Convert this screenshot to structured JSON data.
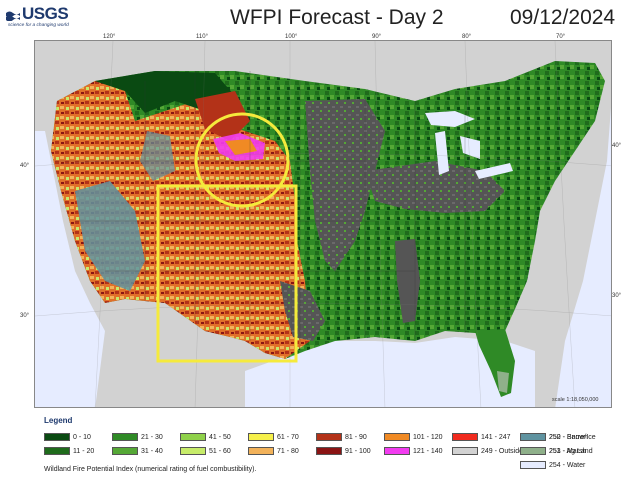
{
  "header": {
    "logo_text": "USGS",
    "logo_tagline": "science for a changing world",
    "title": "WFPI Forecast - Day 2",
    "date": "09/12/2024"
  },
  "map": {
    "longitude_labels": [
      "120°",
      "110°",
      "100°",
      "90°",
      "80°",
      "70°"
    ],
    "latitude_labels_left": [
      "40°",
      "30°"
    ],
    "latitude_labels_right": [
      "40°",
      "30°"
    ],
    "scale": "scale 1:18,050,000",
    "highlight_color": "#f5ea3c",
    "highlights": [
      "circle",
      "rectangle"
    ]
  },
  "legend": {
    "title": "Legend",
    "items": [
      {
        "label": "0 - 10",
        "color": "#0a4a12"
      },
      {
        "label": "11 - 20",
        "color": "#1f6b1c"
      },
      {
        "label": "21 - 30",
        "color": "#2f8a26"
      },
      {
        "label": "31 - 40",
        "color": "#55a836"
      },
      {
        "label": "41 - 50",
        "color": "#8fd14a"
      },
      {
        "label": "51 - 60",
        "color": "#c7ec6a"
      },
      {
        "label": "61 - 70",
        "color": "#f6f04a"
      },
      {
        "label": "71 - 80",
        "color": "#f2b25a"
      },
      {
        "label": "81 - 90",
        "color": "#b33218"
      },
      {
        "label": "91 - 100",
        "color": "#8a1414"
      },
      {
        "label": "101 - 120",
        "color": "#f08a24"
      },
      {
        "label": "121 - 140",
        "color": "#f23cf0"
      },
      {
        "label": "141 - 247",
        "color": "#f02a1e"
      },
      {
        "label": "249 - Outside US",
        "color": "#d2d2d2"
      },
      {
        "label": "250 - Snow/Ice",
        "color": "#ffffff"
      },
      {
        "label": "251 - Ag Land",
        "color": "#555555"
      },
      {
        "label": "252 - Barren",
        "color": "#5f93a0"
      },
      {
        "label": "253 - Marsh",
        "color": "#8fb08a"
      },
      {
        "label": "254 - Water",
        "color": "#e6ecff"
      }
    ],
    "footnote": "Wildland Fire Potential Index (numerical rating of fuel combustibility)."
  }
}
